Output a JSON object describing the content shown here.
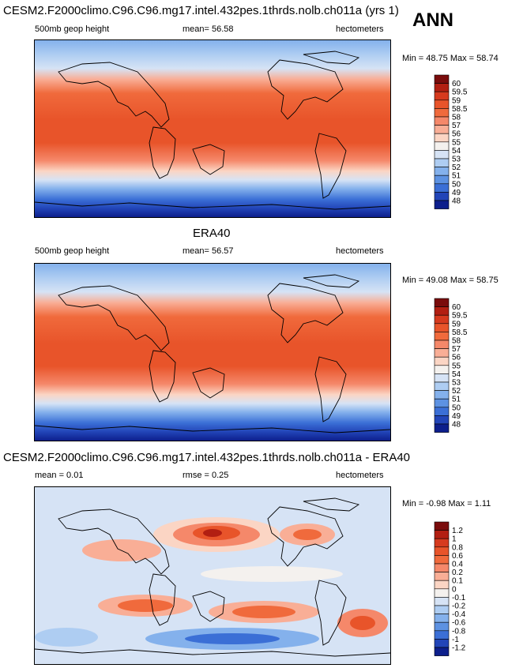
{
  "panels": [
    {
      "title": "CESM2.F2000climo.C96.C96.mg17.intel.432pes.1thrds.nolb.ch011a (yrs 1)",
      "left_label": "500mb geop height",
      "center_label": "mean=  56.58",
      "right_label": "hectometers",
      "minmax": "Min = 48.75 Max =  58.74",
      "colorbar": {
        "labels": [
          "60",
          "59.5",
          "59",
          "58.5",
          "58",
          "57",
          "56",
          "55",
          "54",
          "53",
          "52",
          "51",
          "50",
          "49",
          "48"
        ],
        "colors": [
          "#7a0c0c",
          "#b21f12",
          "#d63a1e",
          "#e8542a",
          "#f06a3c",
          "#f5886a",
          "#f9ae96",
          "#fbd5c4",
          "#f4f1ee",
          "#d6e3f5",
          "#aecdf2",
          "#84b1ec",
          "#5d92e2",
          "#3b6fd6",
          "#2245b8",
          "#0d1f8c"
        ]
      }
    },
    {
      "title": "ERA40",
      "left_label": "500mb geop height",
      "center_label": "mean=  56.57",
      "right_label": "hectometers",
      "minmax": "Min = 49.08 Max =  58.75",
      "colorbar": {
        "labels": [
          "60",
          "59.5",
          "59",
          "58.5",
          "58",
          "57",
          "56",
          "55",
          "54",
          "53",
          "52",
          "51",
          "50",
          "49",
          "48"
        ],
        "colors": [
          "#7a0c0c",
          "#b21f12",
          "#d63a1e",
          "#e8542a",
          "#f06a3c",
          "#f5886a",
          "#f9ae96",
          "#fbd5c4",
          "#f4f1ee",
          "#d6e3f5",
          "#aecdf2",
          "#84b1ec",
          "#5d92e2",
          "#3b6fd6",
          "#2245b8",
          "#0d1f8c"
        ]
      }
    },
    {
      "title": "CESM2.F2000climo.C96.C96.mg17.intel.432pes.1thrds.nolb.ch011a - ERA40",
      "left_label": "mean =   0.01",
      "center_label": "rmse =   0.25",
      "right_label": "hectometers",
      "minmax": "Min = -0.98 Max =   1.11",
      "colorbar": {
        "labels": [
          "1.2",
          "1",
          "0.8",
          "0.6",
          "0.4",
          "0.2",
          "0.1",
          "0",
          "-0.1",
          "-0.2",
          "-0.4",
          "-0.6",
          "-0.8",
          "-1",
          "-1.2"
        ],
        "colors": [
          "#7a0c0c",
          "#b21f12",
          "#d63a1e",
          "#e8542a",
          "#f06a3c",
          "#f5886a",
          "#f9ae96",
          "#fbd5c4",
          "#f4f1ee",
          "#d6e3f5",
          "#aecdf2",
          "#84b1ec",
          "#5d92e2",
          "#3b6fd6",
          "#2245b8",
          "#0d1f8c"
        ]
      }
    }
  ],
  "season": "ANN"
}
